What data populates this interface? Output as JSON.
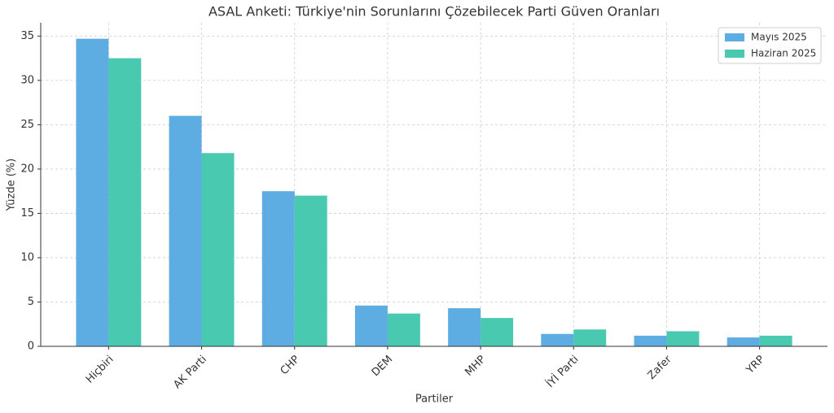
{
  "chart_data": {
    "type": "bar",
    "title": "ASAL Anketi: Türkiye'nin Sorunlarını Çözebilecek Parti Güven Oranları",
    "x_label": "Partiler",
    "y_label": "Yüzde (%)",
    "categories": [
      "Hiçbiri",
      "AK Parti",
      "CHP",
      "DEM",
      "MHP",
      "İYİ Parti",
      "Zafer",
      "YRP"
    ],
    "series": [
      {
        "name": "Mayıs 2025",
        "color": "#5dade2",
        "values": [
          34.7,
          26.0,
          17.5,
          4.6,
          4.3,
          1.4,
          1.2,
          1.0
        ]
      },
      {
        "name": "Haziran 2025",
        "color": "#48c9b0",
        "values": [
          32.5,
          21.8,
          17.0,
          3.7,
          3.2,
          1.9,
          1.7,
          1.2
        ]
      }
    ],
    "ylim": [
      0,
      36.5
    ],
    "yticks": [
      0,
      5,
      10,
      15,
      20,
      25,
      30,
      35
    ],
    "grid": true,
    "legend": "upper-right"
  }
}
